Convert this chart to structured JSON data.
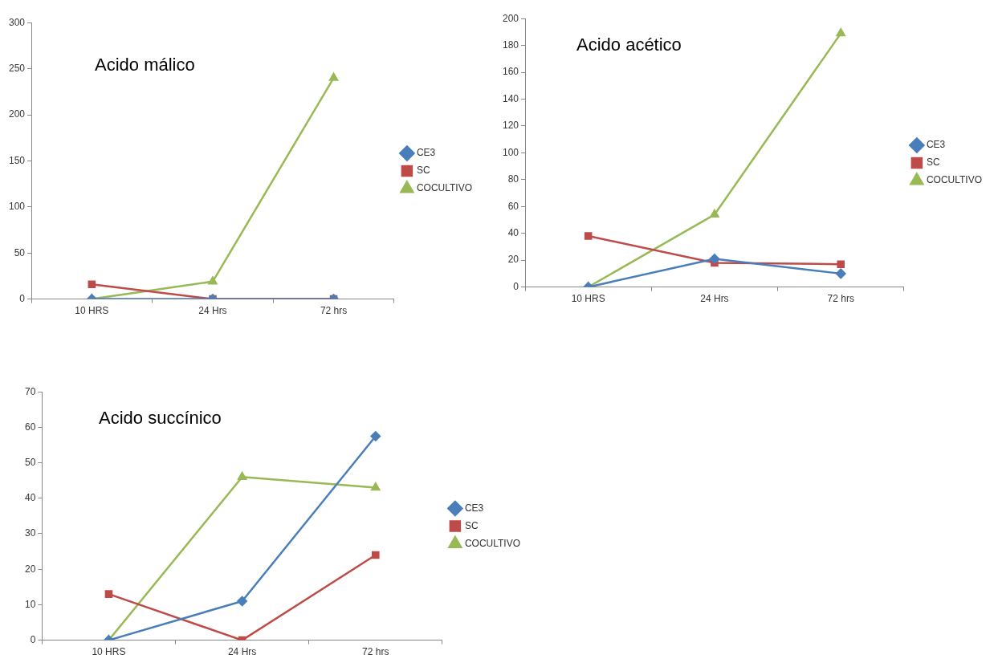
{
  "chart_data": [
    {
      "type": "line",
      "title": "Acido málico",
      "categories": [
        "10 HRS",
        "24 Hrs",
        "72 hrs"
      ],
      "ylim": [
        0,
        300
      ],
      "yticks": [
        0,
        50,
        100,
        150,
        200,
        250,
        300
      ],
      "grid": false,
      "legend": "right",
      "series": [
        {
          "name": "CE3",
          "color": "#4a7ebb",
          "marker": "diamond",
          "values": [
            0,
            0,
            0
          ]
        },
        {
          "name": "SC",
          "color": "#be4b48",
          "marker": "square",
          "values": [
            16,
            0,
            0
          ]
        },
        {
          "name": "COCULTIVO",
          "color": "#98b954",
          "marker": "triangle",
          "values": [
            0,
            19,
            240
          ]
        }
      ]
    },
    {
      "type": "line",
      "title": "Acido acético",
      "categories": [
        "10 HRS",
        "24 Hrs",
        "72 hrs"
      ],
      "ylim": [
        0,
        200
      ],
      "yticks": [
        0,
        20,
        40,
        60,
        80,
        100,
        120,
        140,
        160,
        180,
        200
      ],
      "grid": false,
      "legend": "right",
      "series": [
        {
          "name": "CE3",
          "color": "#4a7ebb",
          "marker": "diamond",
          "values": [
            0,
            21,
            10
          ]
        },
        {
          "name": "SC",
          "color": "#be4b48",
          "marker": "square",
          "values": [
            38,
            18,
            17
          ]
        },
        {
          "name": "COCULTIVO",
          "color": "#98b954",
          "marker": "triangle",
          "values": [
            0,
            54,
            189
          ]
        }
      ]
    },
    {
      "type": "line",
      "title": "Acido succínico",
      "categories": [
        "10 HRS",
        "24 Hrs",
        "72 hrs"
      ],
      "ylim": [
        0,
        70
      ],
      "yticks": [
        0,
        10,
        20,
        30,
        40,
        50,
        60,
        70
      ],
      "grid": false,
      "legend": "right",
      "series": [
        {
          "name": "CE3",
          "color": "#4a7ebb",
          "marker": "diamond",
          "values": [
            0,
            11,
            57.5
          ]
        },
        {
          "name": "SC",
          "color": "#be4b48",
          "marker": "square",
          "values": [
            13,
            0,
            24
          ]
        },
        {
          "name": "COCULTIVO",
          "color": "#98b954",
          "marker": "triangle",
          "values": [
            0,
            46,
            43
          ]
        }
      ]
    }
  ]
}
